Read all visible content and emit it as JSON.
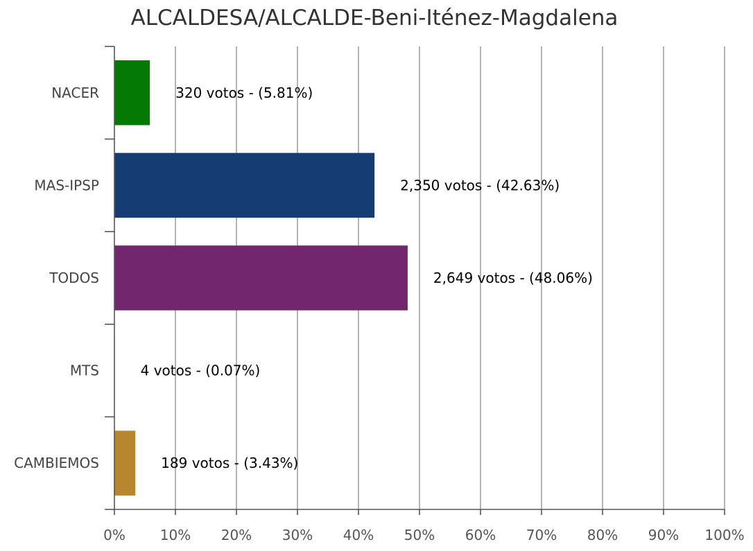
{
  "chart_data": {
    "type": "bar",
    "orientation": "horizontal",
    "title": "ALCALDESA/ALCALDE-Beni-Iténez-Magdalena",
    "categories": [
      "NACER",
      "MAS-IPSP",
      "TODOS",
      "MTS",
      "CAMBIEMOS"
    ],
    "values": [
      5.81,
      42.63,
      48.06,
      0.07,
      3.43
    ],
    "data_labels": [
      "320 votos - (5.81%)",
      "2,350 votos - (42.63%)",
      "2,649 votos - (48.06%)",
      "4 votos - (0.07%)",
      "189 votos - (3.43%)"
    ],
    "colors": [
      "#047a04",
      "#153c73",
      "#72266e",
      "#7a9a2a",
      "#b7862f"
    ],
    "xlim": [
      0,
      100
    ],
    "xticks": [
      "0%",
      "10%",
      "20%",
      "30%",
      "40%",
      "50%",
      "60%",
      "70%",
      "80%",
      "90%",
      "100%"
    ],
    "grid": true,
    "xlabel": "",
    "ylabel": ""
  }
}
